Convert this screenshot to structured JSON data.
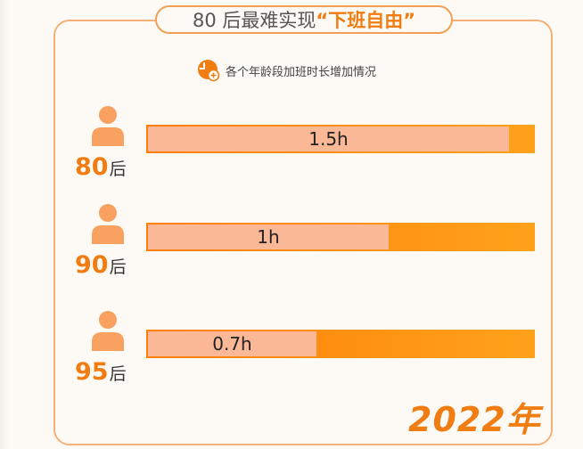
{
  "header": {
    "title_prefix": "80 后最难实现",
    "title_highlight": "“下班自由”",
    "subtitle": "各个年龄段加班时长增加情况",
    "subtitle_icon": "clock-plus-icon"
  },
  "colors": {
    "accent": "#f07d12",
    "bar_track": "#ff8a0c",
    "bar_fill": "#fbb896",
    "frame": "#f5b178"
  },
  "chart_data": {
    "type": "bar",
    "orientation": "horizontal",
    "title": "各个年龄段加班时长增加情况",
    "categories": [
      "80后",
      "90后",
      "95后"
    ],
    "category_numbers": [
      "80",
      "90",
      "95"
    ],
    "category_suffix": "后",
    "values": [
      1.5,
      1,
      0.7
    ],
    "data_labels": [
      "1.5h",
      "1h",
      "0.7h"
    ],
    "unit": "h",
    "xlim": [
      0,
      1.6
    ],
    "icon": "person-icon"
  },
  "footer": {
    "year": "2022年"
  }
}
